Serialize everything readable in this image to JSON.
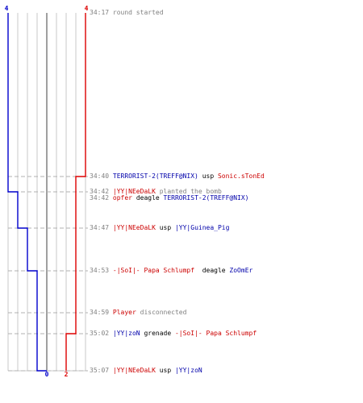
{
  "colors": {
    "ct_line": "#0000cc",
    "t_line": "#dd0000",
    "grid": "#c8c8c8",
    "center_axis": "#808080",
    "dash": "#b0b0b0",
    "text_gray": "#808080",
    "text_red": "#cc0000",
    "text_blue": "#0000aa"
  },
  "counters": {
    "ct_start": "4",
    "t_start": "4",
    "ct_end": "0",
    "t_end": "2"
  },
  "events": [
    {
      "time": "34:17",
      "segments": [
        {
          "text": "round started",
          "color": "gray"
        }
      ]
    },
    {
      "time": "34:40",
      "segments": [
        {
          "text": "TERRORIST-2(TREFF@NIX)",
          "color": "blue"
        },
        {
          "text": " usp ",
          "color": "black"
        },
        {
          "text": "Sonic.sTonEd",
          "color": "red"
        }
      ]
    },
    {
      "time": "34:42",
      "segments": [
        {
          "text": "|YY|NEeDaLK",
          "color": "red"
        },
        {
          "text": " planted the bomb",
          "color": "gray"
        }
      ]
    },
    {
      "time": "34:42",
      "segments": [
        {
          "text": "opfer",
          "color": "red"
        },
        {
          "text": " deagle ",
          "color": "black"
        },
        {
          "text": "TERRORIST-2(TREFF@NIX)",
          "color": "blue"
        }
      ]
    },
    {
      "time": "34:47",
      "segments": [
        {
          "text": "|YY|NEeDaLK",
          "color": "red"
        },
        {
          "text": " usp ",
          "color": "black"
        },
        {
          "text": "|YY|Guinea_Pig",
          "color": "blue"
        }
      ]
    },
    {
      "time": "34:53",
      "segments": [
        {
          "text": "-|SoI|- Papa Schlumpf",
          "color": "red"
        },
        {
          "text": "  deagle ",
          "color": "black"
        },
        {
          "text": "ZoOmEr",
          "color": "blue"
        }
      ]
    },
    {
      "time": "34:59",
      "segments": [
        {
          "text": "Player",
          "color": "red"
        },
        {
          "text": " disconnected",
          "color": "gray"
        }
      ]
    },
    {
      "time": "35:02",
      "segments": [
        {
          "text": "|YY|zoN",
          "color": "blue"
        },
        {
          "text": " grenade ",
          "color": "black"
        },
        {
          "text": "-|SoI|- Papa Schlumpf",
          "color": "red"
        }
      ]
    },
    {
      "time": "35:07",
      "segments": [
        {
          "text": "|YY|NEeDaLK",
          "color": "red"
        },
        {
          "text": " usp ",
          "color": "black"
        },
        {
          "text": "|YY|zoN",
          "color": "blue"
        }
      ]
    }
  ]
}
